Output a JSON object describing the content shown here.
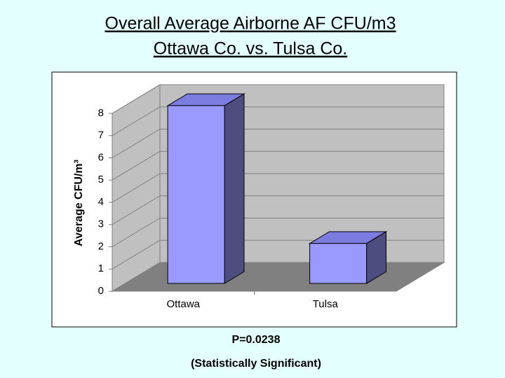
{
  "chart_data": {
    "type": "bar3d",
    "title": "Overall Average Airborne AF CFU/m3",
    "subtitle": "Ottawa Co. vs. Tulsa Co.",
    "y_label": "Average CFU/m³",
    "categories": [
      "Ottawa",
      "Tulsa"
    ],
    "values": [
      8.0,
      1.8
    ],
    "color": "#9999ff",
    "ylim": [
      0,
      8
    ],
    "yticks": [
      0,
      1,
      2,
      3,
      4,
      5,
      6,
      7,
      8
    ],
    "grid": true,
    "annotations": [
      "P=0.0238",
      "(Statistically Significant)"
    ]
  }
}
